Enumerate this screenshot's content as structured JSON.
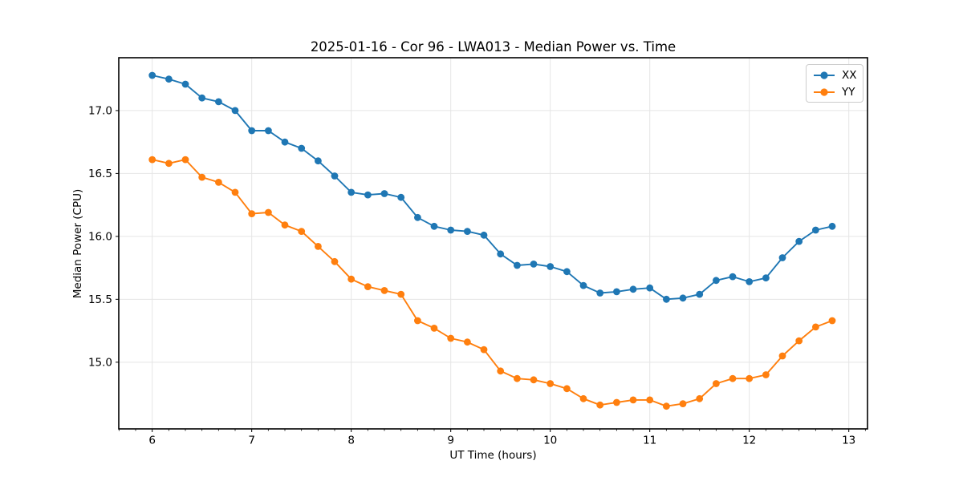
{
  "chart_data": {
    "type": "line",
    "title": "2025-01-16 - Cor 96 - LWA013 - Median Power vs. Time",
    "xlabel": "UT Time (hours)",
    "ylabel": "Median Power (CPU)",
    "grid": true,
    "legend_position": "upper right",
    "xlim": [
      5.664,
      13.188
    ],
    "ylim": [
      14.47,
      17.42
    ],
    "xticks": [
      6,
      7,
      8,
      9,
      10,
      11,
      12,
      13
    ],
    "xtick_labels": [
      "6",
      "7",
      "8",
      "9",
      "10",
      "11",
      "12",
      "13"
    ],
    "yticks": [
      15.0,
      15.5,
      16.0,
      16.5,
      17.0
    ],
    "ytick_labels": [
      "15.0",
      "15.5",
      "16.0",
      "16.5",
      "17.0"
    ],
    "minor_xtick_step_hours": 0.1667,
    "grid_color": "#e5e5e5",
    "spine_color": "#000000",
    "x": [
      6.0,
      6.167,
      6.333,
      6.5,
      6.667,
      6.833,
      7.0,
      7.167,
      7.333,
      7.5,
      7.667,
      7.833,
      8.0,
      8.167,
      8.333,
      8.5,
      8.667,
      8.833,
      9.0,
      9.167,
      9.333,
      9.5,
      9.667,
      9.833,
      10.0,
      10.167,
      10.333,
      10.5,
      10.667,
      10.833,
      11.0,
      11.167,
      11.333,
      11.5,
      11.667,
      11.833,
      12.0,
      12.167,
      12.333,
      12.5,
      12.667,
      12.833
    ],
    "series": [
      {
        "name": "XX",
        "color": "#1f77b4",
        "values": [
          17.28,
          17.25,
          17.21,
          17.1,
          17.07,
          17.0,
          16.84,
          16.84,
          16.75,
          16.7,
          16.6,
          16.48,
          16.35,
          16.33,
          16.34,
          16.31,
          16.15,
          16.08,
          16.05,
          16.04,
          16.01,
          15.86,
          15.77,
          15.78,
          15.76,
          15.72,
          15.61,
          15.55,
          15.56,
          15.58,
          15.59,
          15.5,
          15.51,
          15.54,
          15.65,
          15.68,
          15.64,
          15.67,
          15.83,
          15.96,
          16.05,
          16.08
        ]
      },
      {
        "name": "YY",
        "color": "#ff7f0e",
        "values": [
          16.61,
          16.58,
          16.61,
          16.47,
          16.43,
          16.35,
          16.18,
          16.19,
          16.09,
          16.04,
          15.92,
          15.8,
          15.66,
          15.6,
          15.57,
          15.54,
          15.33,
          15.27,
          15.19,
          15.16,
          15.1,
          14.93,
          14.87,
          14.86,
          14.83,
          14.79,
          14.71,
          14.66,
          14.68,
          14.7,
          14.7,
          14.65,
          14.67,
          14.71,
          14.83,
          14.87,
          14.87,
          14.9,
          15.05,
          15.17,
          15.28,
          15.33
        ]
      }
    ]
  }
}
